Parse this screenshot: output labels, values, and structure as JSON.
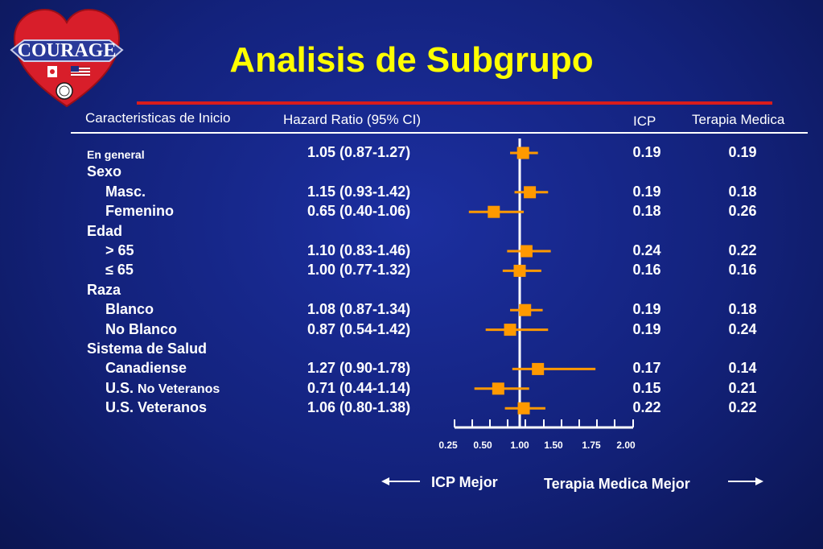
{
  "title": "Analisis de Subgrupo",
  "logo": {
    "text": "COURAGE",
    "flags": [
      "canada-flag",
      "usa-flag"
    ],
    "seal": "va-seal-icon"
  },
  "headers": {
    "characteristics": "Caracteristicas de Inicio",
    "hazard_ratio": "Hazard Ratio (95% CI)",
    "icp": "ICP",
    "terapia": "Terapia Medica"
  },
  "rows": [
    {
      "label": "En general",
      "style": "small",
      "hr_text": "1.05 (0.87-1.27)",
      "icp": "0.19",
      "terapia": "0.19"
    },
    {
      "label": "Sexo",
      "style": "group"
    },
    {
      "label": "Masc.",
      "style": "sub",
      "hr_text": "1.15 (0.93-1.42)",
      "icp": "0.19",
      "terapia": "0.18"
    },
    {
      "label": "Femenino",
      "style": "sub",
      "hr_text": "0.65 (0.40-1.06)",
      "icp": "0.18",
      "terapia": "0.26"
    },
    {
      "label": "Edad",
      "style": "group"
    },
    {
      "label": "> 65",
      "style": "sub",
      "hr_text": "1.10 (0.83-1.46)",
      "icp": "0.24",
      "terapia": "0.22"
    },
    {
      "label": "≤ 65",
      "style": "sub",
      "hr_text": "1.00 (0.77-1.32)",
      "icp": "0.16",
      "terapia": "0.16"
    },
    {
      "label": "Raza",
      "style": "group"
    },
    {
      "label": "Blanco",
      "style": "sub",
      "hr_text": "1.08 (0.87-1.34)",
      "icp": "0.19",
      "terapia": "0.18"
    },
    {
      "label": "No Blanco",
      "style": "sub",
      "hr_text": "0.87 (0.54-1.42)",
      "icp": "0.19",
      "terapia": "0.24"
    },
    {
      "label": "Sistema de Salud",
      "style": "group"
    },
    {
      "label": "Canadiense",
      "style": "sub",
      "hr_text": "1.27 (0.90-1.78)",
      "icp": "0.17",
      "terapia": "0.14"
    },
    {
      "label": "U.S.",
      "label_small": "No Veteranos",
      "style": "sub",
      "hr_text": "0.71 (0.44-1.14)",
      "icp": "0.15",
      "terapia": "0.21"
    },
    {
      "label": "U.S. Veteranos",
      "style": "sub",
      "hr_text": "1.06 (0.80-1.38)",
      "icp": "0.22",
      "terapia": "0.22"
    }
  ],
  "chart_data": {
    "type": "forest",
    "reference_line": 1.0,
    "xlim": [
      0.25,
      2.0
    ],
    "ticks": [
      "0.25",
      "0.50",
      "1.00",
      "1.50",
      "1.75",
      "2.00"
    ],
    "points": [
      {
        "row": 0,
        "hr": 1.05,
        "lo": 0.87,
        "hi": 1.27
      },
      {
        "row": 2,
        "hr": 1.15,
        "lo": 0.93,
        "hi": 1.42
      },
      {
        "row": 3,
        "hr": 0.65,
        "lo": 0.4,
        "hi": 1.06
      },
      {
        "row": 5,
        "hr": 1.1,
        "lo": 0.83,
        "hi": 1.46
      },
      {
        "row": 6,
        "hr": 1.0,
        "lo": 0.77,
        "hi": 1.32
      },
      {
        "row": 8,
        "hr": 1.08,
        "lo": 0.87,
        "hi": 1.34
      },
      {
        "row": 9,
        "hr": 0.87,
        "lo": 0.54,
        "hi": 1.42
      },
      {
        "row": 11,
        "hr": 1.27,
        "lo": 0.9,
        "hi": 1.78
      },
      {
        "row": 12,
        "hr": 0.71,
        "lo": 0.44,
        "hi": 1.14
      },
      {
        "row": 13,
        "hr": 1.06,
        "lo": 0.8,
        "hi": 1.38
      }
    ],
    "marker_color": "#ff9900",
    "line_color": "#ffffff"
  },
  "directions": {
    "left": "ICP Mejor",
    "right": "Terapia Medica Mejor"
  }
}
